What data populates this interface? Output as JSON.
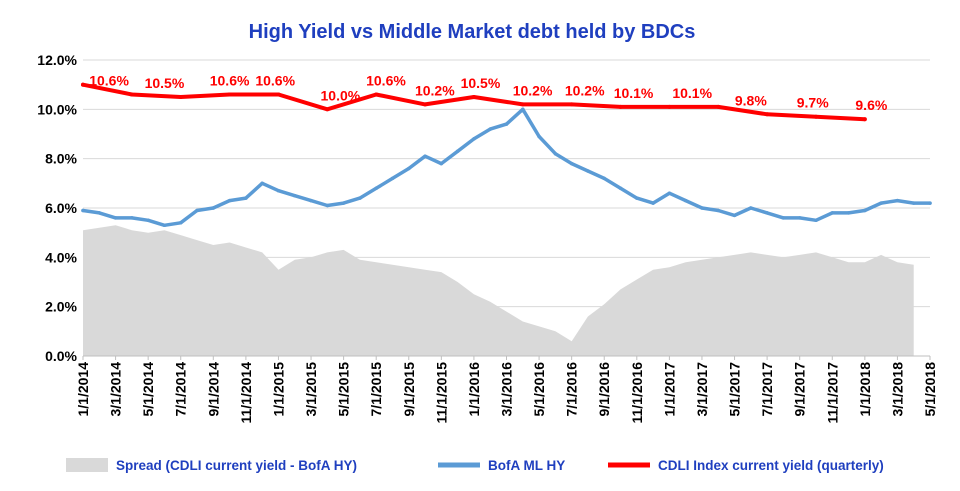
{
  "chart_data": {
    "type": "line",
    "title": "High Yield  vs  Middle Market debt held by BDCs",
    "xlabel": "",
    "ylabel": "",
    "ylim": [
      0,
      12
    ],
    "y_tick_labels": [
      "0.0%",
      "2.0%",
      "4.0%",
      "6.0%",
      "8.0%",
      "10.0%",
      "12.0%"
    ],
    "x_tick_labels": [
      "1/1/2014",
      "3/1/2014",
      "5/1/2014",
      "7/1/2014",
      "9/1/2014",
      "11/1/2014",
      "1/1/2015",
      "3/1/2015",
      "5/1/2015",
      "7/1/2015",
      "9/1/2015",
      "11/1/2015",
      "1/1/2016",
      "3/1/2016",
      "5/1/2016",
      "7/1/2016",
      "9/1/2016",
      "11/1/2016",
      "1/1/2017",
      "3/1/2017",
      "5/1/2017",
      "7/1/2017",
      "9/1/2017",
      "11/1/2017",
      "1/1/2018",
      "3/1/2018",
      "5/1/2018"
    ],
    "x_range": [
      0,
      52
    ],
    "grid": "horizontal",
    "legend_position": "bottom",
    "colors": {
      "spread": "#d9d9d9",
      "hy": "#5b9bd5",
      "cdli": "#ff0000",
      "title": "#1f3fbf",
      "gridline": "#d9d9d9"
    },
    "series": [
      {
        "name": "Spread (CDLI current yield - BofA HY)",
        "kind": "area",
        "x": [
          0,
          1,
          2,
          3,
          4,
          5,
          6,
          7,
          8,
          9,
          10,
          11,
          12,
          13,
          14,
          15,
          16,
          17,
          18,
          19,
          20,
          21,
          22,
          23,
          24,
          25,
          26,
          27,
          28,
          29,
          30,
          31,
          32,
          33,
          34,
          35,
          36,
          37,
          38,
          39,
          40,
          41,
          42,
          43,
          44,
          45,
          46,
          47,
          48,
          49,
          50,
          51
        ],
        "values": [
          5.1,
          5.2,
          5.3,
          5.1,
          5.0,
          5.1,
          4.9,
          4.7,
          4.5,
          4.6,
          4.4,
          4.2,
          3.5,
          3.9,
          4.0,
          4.2,
          4.3,
          3.9,
          3.8,
          3.7,
          3.6,
          3.5,
          3.4,
          3.0,
          2.5,
          2.2,
          1.8,
          1.4,
          1.2,
          1.0,
          0.6,
          1.6,
          2.1,
          2.7,
          3.1,
          3.5,
          3.6,
          3.8,
          3.9,
          4.0,
          4.1,
          4.2,
          4.1,
          4.0,
          4.1,
          4.2,
          4.0,
          3.8,
          3.8,
          4.1,
          3.8,
          3.7
        ]
      },
      {
        "name": "BofA ML HY",
        "kind": "line",
        "x": [
          0,
          1,
          2,
          3,
          4,
          5,
          6,
          7,
          8,
          9,
          10,
          11,
          12,
          13,
          14,
          15,
          16,
          17,
          18,
          19,
          20,
          21,
          22,
          23,
          24,
          25,
          26,
          27,
          28,
          29,
          30,
          31,
          32,
          33,
          34,
          35,
          36,
          37,
          38,
          39,
          40,
          41,
          42,
          43,
          44,
          45,
          46,
          47,
          48,
          49,
          50,
          51,
          52
        ],
        "values": [
          5.9,
          5.8,
          5.6,
          5.6,
          5.5,
          5.3,
          5.4,
          5.9,
          6.0,
          6.3,
          6.4,
          7.0,
          6.7,
          6.5,
          6.3,
          6.1,
          6.2,
          6.4,
          6.8,
          7.2,
          7.6,
          8.1,
          7.8,
          8.3,
          8.8,
          9.2,
          9.4,
          10.0,
          8.9,
          8.2,
          7.8,
          7.5,
          7.2,
          6.8,
          6.4,
          6.2,
          6.6,
          6.3,
          6.0,
          5.9,
          5.7,
          6.0,
          5.8,
          5.6,
          5.6,
          5.5,
          5.8,
          5.8,
          5.9,
          6.2,
          6.3,
          6.2,
          6.2
        ]
      },
      {
        "name": "CDLI Index current yield (quarterly)",
        "kind": "line",
        "x": [
          0,
          3,
          6,
          9,
          12,
          15,
          18,
          21,
          24,
          27,
          30,
          33,
          36,
          39,
          42,
          45,
          48
        ],
        "values": [
          11.0,
          10.6,
          10.5,
          10.6,
          10.6,
          10.0,
          10.6,
          10.2,
          10.5,
          10.2,
          10.2,
          10.1,
          10.1,
          10.1,
          9.8,
          9.7,
          9.6
        ]
      }
    ],
    "annotations": [
      {
        "x": 1.6,
        "y": 10.6,
        "text": "10.6%"
      },
      {
        "x": 5.0,
        "y": 10.5,
        "text": "10.5%"
      },
      {
        "x": 9.0,
        "y": 10.6,
        "text": "10.6%"
      },
      {
        "x": 11.8,
        "y": 10.6,
        "text": "10.6%"
      },
      {
        "x": 15.8,
        "y": 10.0,
        "text": "10.0%"
      },
      {
        "x": 18.6,
        "y": 10.6,
        "text": "10.6%"
      },
      {
        "x": 21.6,
        "y": 10.2,
        "text": "10.2%"
      },
      {
        "x": 24.4,
        "y": 10.5,
        "text": "10.5%"
      },
      {
        "x": 27.6,
        "y": 10.2,
        "text": "10.2%"
      },
      {
        "x": 30.8,
        "y": 10.2,
        "text": "10.2%"
      },
      {
        "x": 33.8,
        "y": 10.1,
        "text": "10.1%"
      },
      {
        "x": 37.4,
        "y": 10.1,
        "text": "10.1%"
      },
      {
        "x": 41.0,
        "y": 9.8,
        "text": "9.8%"
      },
      {
        "x": 44.8,
        "y": 9.7,
        "text": "9.7%"
      },
      {
        "x": 48.4,
        "y": 9.6,
        "text": "9.6%"
      }
    ]
  }
}
